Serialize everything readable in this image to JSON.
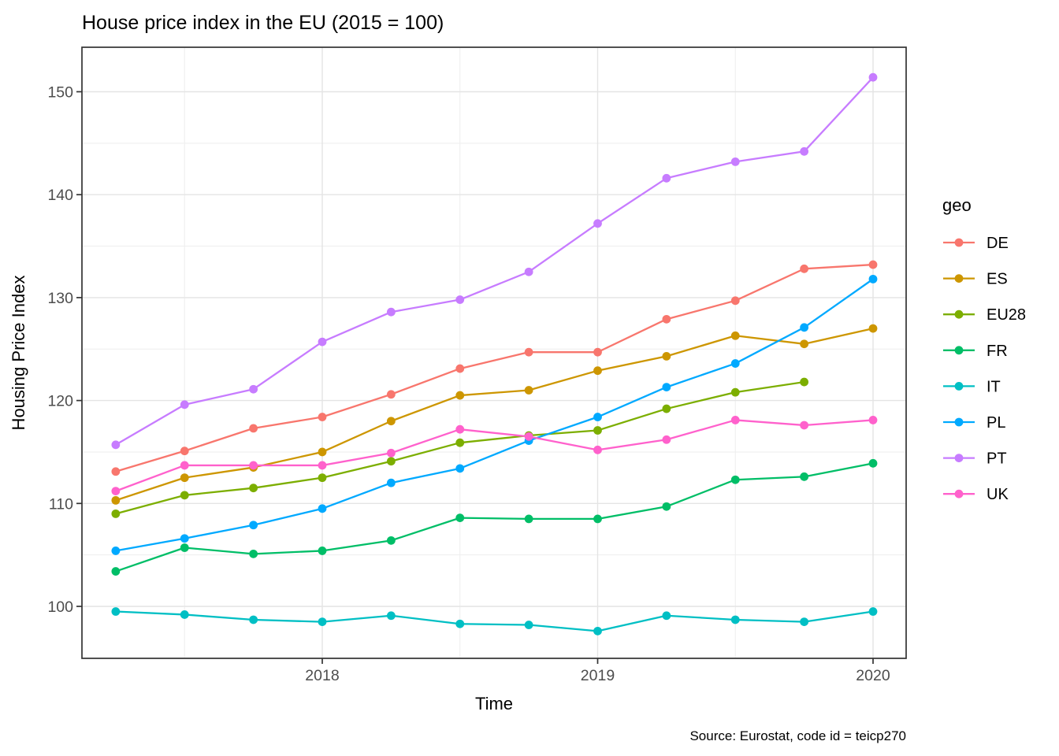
{
  "chart_data": {
    "type": "line",
    "title": "House price index in the EU (2015 = 100)",
    "xlabel": "Time",
    "ylabel": "Housing Price Index",
    "caption": "Source: Eurostat, code id = teicp270",
    "legend_title": "geo",
    "legend_position": "right",
    "grid": true,
    "xlim": [
      2017.12,
      2020.13
    ],
    "ylim": [
      95,
      154
    ],
    "x_tick_values": [
      2018,
      2019,
      2020
    ],
    "x_tick_labels": [
      "2018",
      "2019",
      "2020"
    ],
    "x_minor_gridlines": [
      2017.5,
      2018.5,
      2019.5
    ],
    "y_ticks": [
      100,
      110,
      120,
      130,
      140,
      150
    ],
    "y_minor_gridlines": [
      95,
      105,
      115,
      125,
      135,
      145
    ],
    "x": [
      2017.25,
      2017.5,
      2017.75,
      2018.0,
      2018.25,
      2018.5,
      2018.75,
      2019.0,
      2019.25,
      2019.5,
      2019.75,
      2020.0
    ],
    "x_quarter_labels": [
      "2017-Q2",
      "2017-Q3",
      "2017-Q4",
      "2018-Q1",
      "2018-Q2",
      "2018-Q3",
      "2018-Q4",
      "2019-Q1",
      "2019-Q2",
      "2019-Q3",
      "2019-Q4",
      "2020-Q1"
    ],
    "series": [
      {
        "name": "DE",
        "color": "#F8766D",
        "values": [
          113.1,
          115.1,
          117.3,
          118.4,
          120.6,
          123.1,
          124.7,
          124.7,
          127.9,
          129.7,
          132.8,
          133.2
        ]
      },
      {
        "name": "ES",
        "color": "#CD9600",
        "values": [
          110.3,
          112.5,
          113.5,
          115.0,
          118.0,
          120.5,
          121.0,
          122.9,
          124.3,
          126.3,
          125.5,
          127.0
        ]
      },
      {
        "name": "EU28",
        "color": "#7CAE00",
        "values": [
          109.0,
          110.8,
          111.5,
          112.5,
          114.1,
          115.9,
          116.6,
          117.1,
          119.2,
          120.8,
          121.8,
          null
        ]
      },
      {
        "name": "FR",
        "color": "#00BE67",
        "values": [
          103.4,
          105.7,
          105.1,
          105.4,
          106.4,
          108.6,
          108.5,
          108.5,
          109.7,
          112.3,
          112.6,
          113.9
        ]
      },
      {
        "name": "IT",
        "color": "#00BFC4",
        "values": [
          99.5,
          99.2,
          98.7,
          98.5,
          99.1,
          98.3,
          98.2,
          97.6,
          99.1,
          98.7,
          98.5,
          99.5
        ]
      },
      {
        "name": "PL",
        "color": "#00A9FF",
        "values": [
          105.4,
          106.6,
          107.9,
          109.5,
          112.0,
          113.4,
          116.1,
          118.4,
          121.3,
          123.6,
          127.1,
          131.8
        ]
      },
      {
        "name": "PT",
        "color": "#C77CFF",
        "values": [
          115.7,
          119.6,
          121.1,
          125.7,
          128.6,
          129.8,
          132.5,
          137.2,
          141.6,
          143.2,
          144.2,
          151.4
        ]
      },
      {
        "name": "UK",
        "color": "#FF61CC",
        "values": [
          111.2,
          113.7,
          113.7,
          113.7,
          114.9,
          117.2,
          116.5,
          115.2,
          116.2,
          118.1,
          117.6,
          118.1
        ]
      }
    ],
    "style_colors": {
      "tick_label": "#4D4D4D",
      "panel_border": "#333333",
      "major_grid": "#E4E4E4",
      "minor_grid": "#EEEEEE",
      "background": "#FFFFFF"
    }
  }
}
